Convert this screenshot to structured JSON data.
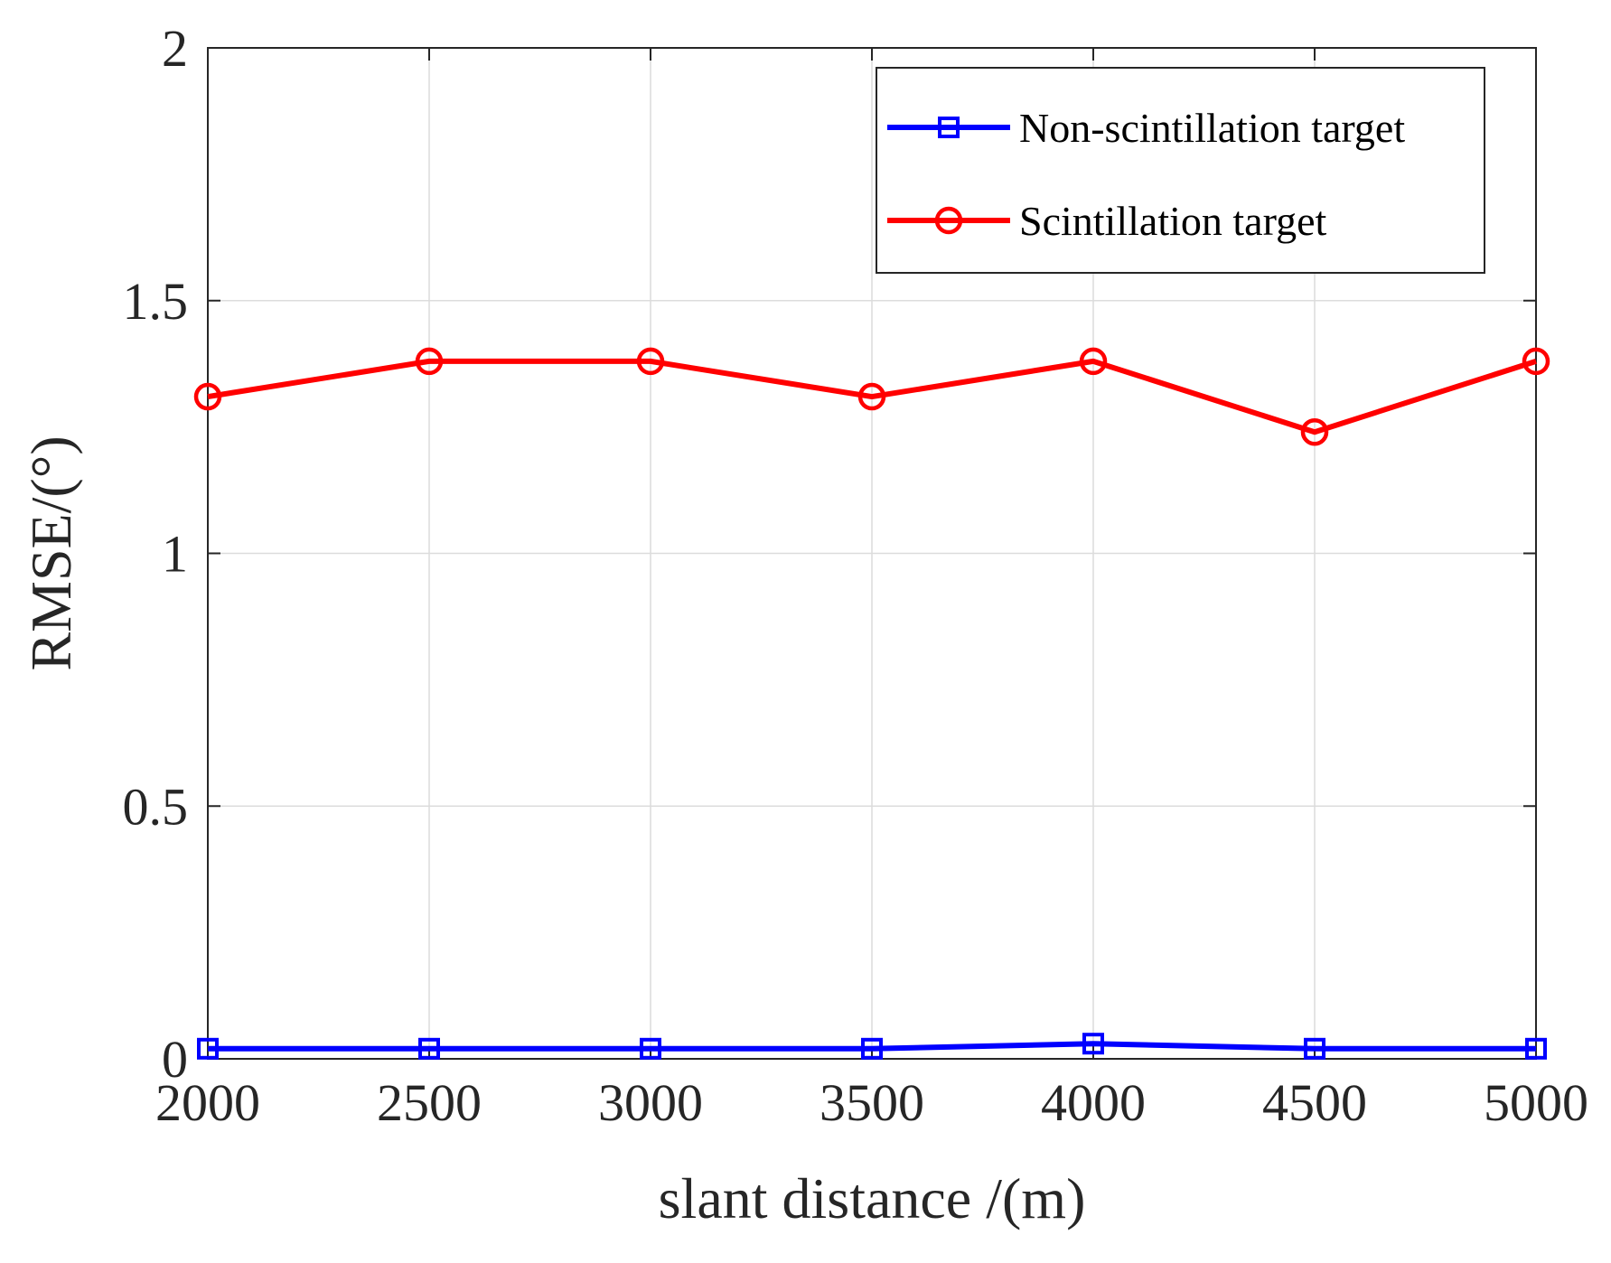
{
  "chart_data": {
    "type": "line",
    "title": "",
    "xlabel": "slant distance /(m)",
    "ylabel": "RMSE/(°)",
    "x": [
      2000,
      2500,
      3000,
      3500,
      4000,
      4500,
      5000
    ],
    "xlim": [
      2000,
      5000
    ],
    "ylim": [
      0,
      2
    ],
    "xticks": [
      2000,
      2500,
      3000,
      3500,
      4000,
      4500,
      5000
    ],
    "yticks": [
      0,
      0.5,
      1,
      1.5,
      2
    ],
    "xtick_labels": [
      "2000",
      "2500",
      "3000",
      "3500",
      "4000",
      "4500",
      "5000"
    ],
    "ytick_labels": [
      "0",
      "0.5",
      "1",
      "1.5",
      "2"
    ],
    "grid": true,
    "legend_position": "top-right",
    "series": [
      {
        "name": "Non-scintillation target",
        "color": "#0000ff",
        "marker": "square",
        "values": [
          0.02,
          0.02,
          0.02,
          0.02,
          0.03,
          0.02,
          0.02
        ]
      },
      {
        "name": "Scintillation target",
        "color": "#ff0000",
        "marker": "circle",
        "values": [
          1.31,
          1.38,
          1.38,
          1.31,
          1.38,
          1.24,
          1.38
        ]
      }
    ]
  }
}
